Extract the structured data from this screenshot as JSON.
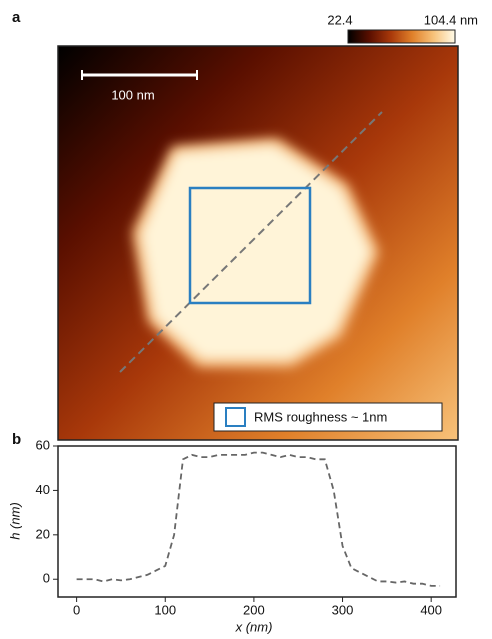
{
  "chart_data": [
    {
      "type": "image",
      "panel_label": "a",
      "colormap": [
        "#000000",
        "#5a0f00",
        "#a8380a",
        "#e0802a",
        "#f7c27a",
        "#fffbe8"
      ],
      "clim": [
        22.4,
        104.4
      ],
      "cticks": [
        22.4,
        {
          "value": 104.4,
          "label": "104.4 nm"
        }
      ],
      "scale_bar": "100 nm",
      "legend": "RMS roughness ~ 1nm",
      "box_color": "#2a7fc1"
    },
    {
      "type": "line",
      "panel_label": "b",
      "xlabel": "x (nm)",
      "ylabel": "h (nm)",
      "x": [
        0,
        10,
        20,
        30,
        40,
        50,
        60,
        70,
        80,
        90,
        100,
        110,
        120,
        130,
        140,
        150,
        160,
        170,
        180,
        190,
        200,
        210,
        220,
        230,
        240,
        250,
        260,
        270,
        280,
        290,
        300,
        310,
        320,
        330,
        340,
        350,
        360,
        370,
        380,
        390,
        400,
        410
      ],
      "series": [
        {
          "color": "#666666",
          "values": [
            0,
            0,
            0,
            -1,
            0,
            -0.5,
            0,
            1,
            2,
            4,
            6,
            20,
            54,
            56,
            55,
            55,
            56,
            56,
            56,
            56,
            57,
            57,
            56,
            55,
            56,
            55,
            55,
            54,
            54,
            40,
            15,
            5,
            3,
            1,
            -1,
            -1,
            -1.5,
            -1,
            -2,
            -2,
            -3,
            -3
          ]
        }
      ],
      "xlim": [
        -21,
        428
      ],
      "ylim": [
        -8,
        60
      ],
      "xticks": [
        0,
        100,
        200,
        300,
        400
      ],
      "yticks": [
        0,
        20,
        40,
        60
      ]
    }
  ]
}
